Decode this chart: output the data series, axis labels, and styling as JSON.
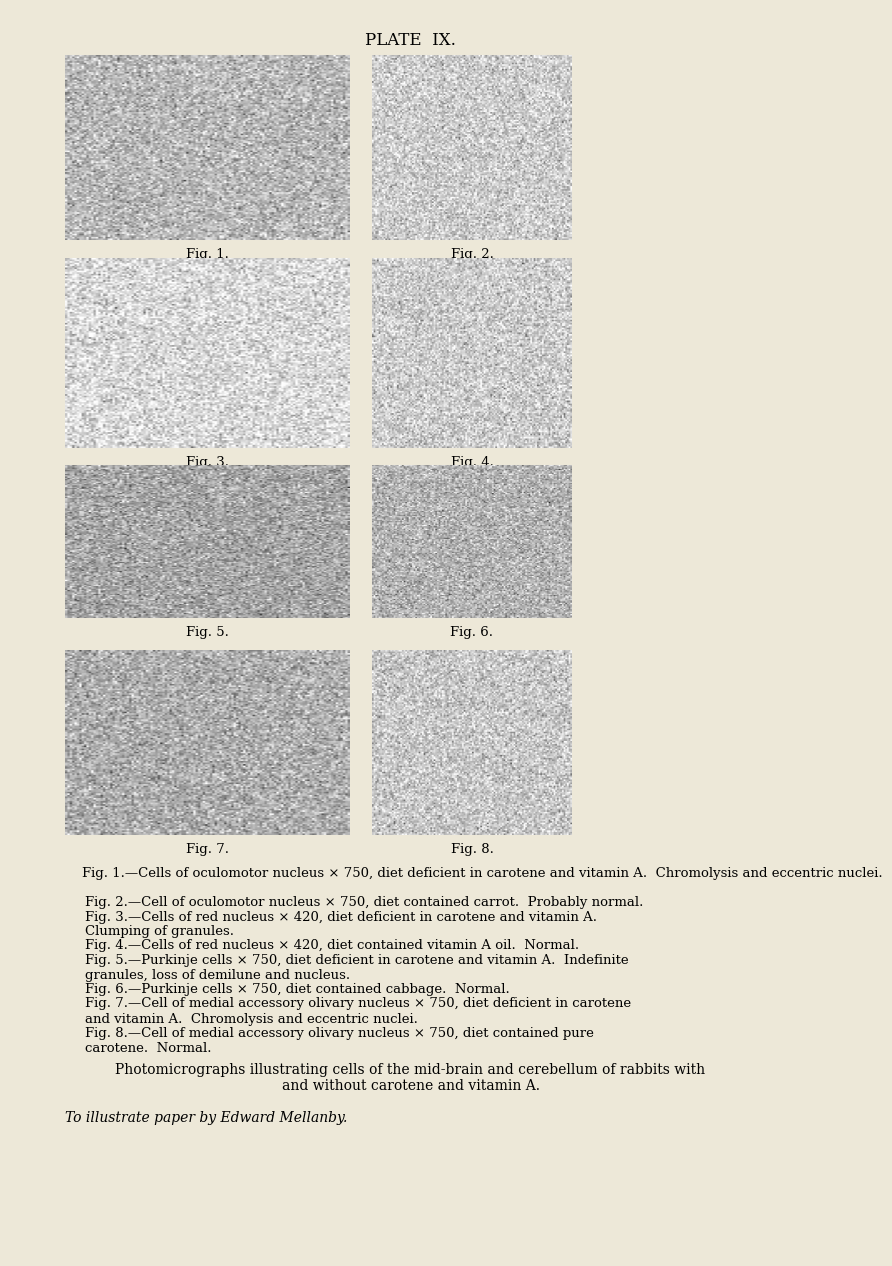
{
  "background_color": "#ede8d8",
  "title": "PLATE  IX.",
  "title_fontsize": 12,
  "fig_labels": [
    "Fig. 1.",
    "Fig. 2.",
    "Fig. 3.",
    "Fig. 4.",
    "Fig. 5.",
    "Fig. 6.",
    "Fig. 7.",
    "Fig. 8."
  ],
  "fig_label_fontsize": 9.5,
  "caption_blocks": [
    {
      "prefix": "Fig. 1.",
      "indent": true,
      "text": "—Cells of oculomotor nucleus × 750, diet deficient in carotene and vitamin A.  Chromolysis and eccentric nuclei."
    },
    {
      "prefix": "Fig. 2.",
      "indent": true,
      "text": "—Cell of oculomotor nucleus × 750, diet contained carrot.  Probably normal."
    },
    {
      "prefix": "Fig. 3.",
      "indent": true,
      "text": "—Cells of red nucleus × 420, diet deficient in carotene and vitamin A. Clumping of granules."
    },
    {
      "prefix": "Fig. 4.",
      "indent": true,
      "text": "—Cells of red nucleus × 420, diet contained vitamin A oil.  Normal."
    },
    {
      "prefix": "Fig. 5.",
      "indent": true,
      "text": "—Purkinje cells × 750, diet deficient in carotene and vitamin A.  Indefinite granules, loss of demilune and nucleus."
    },
    {
      "prefix": "Fig. 6.",
      "indent": true,
      "text": "—Purkinje cells × 750, diet contained cabbage.  Normal."
    },
    {
      "prefix": "Fig. 7.",
      "indent": true,
      "text": "—Cell of medial accessory olivary nucleus × 750, diet deficient in carotene and vitamin A.  Chromolysis and eccentric nuclei."
    },
    {
      "prefix": "Fig. 8.",
      "indent": true,
      "text": "—Cell of medial accessory olivary nucleus × 750, diet contained pure carotene.  Normal."
    }
  ],
  "photomicro_line1": "Photomicrographs illustrating cells of the mid-brain and cerebellum of rabbits with",
  "photomicro_line2": "and without carotene and vitamin A.",
  "italic_line": "To illustrate paper by Edward Mellanby.",
  "gray_values": [
    0.72,
    0.8,
    0.85,
    0.8,
    0.65,
    0.7,
    0.68,
    0.78
  ]
}
